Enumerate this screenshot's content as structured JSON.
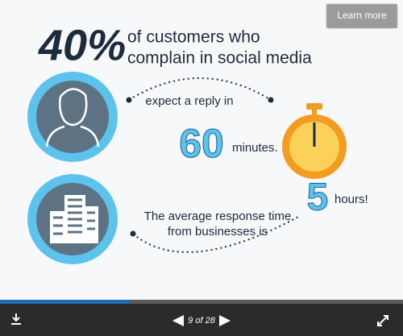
{
  "slide": {
    "headline_number": "40%",
    "headline_lines": [
      "of customers who",
      "complain in social media"
    ],
    "expectation_text": "expect a reply in",
    "expectation_number": "60",
    "expectation_unit": "minutes.",
    "reality_text_lines": [
      "The average response time",
      "from businesses is"
    ],
    "reality_number": "5",
    "reality_unit": "hours!"
  },
  "toolbar": {
    "learn_more": "Learn more",
    "counter": "9 of 28"
  }
}
